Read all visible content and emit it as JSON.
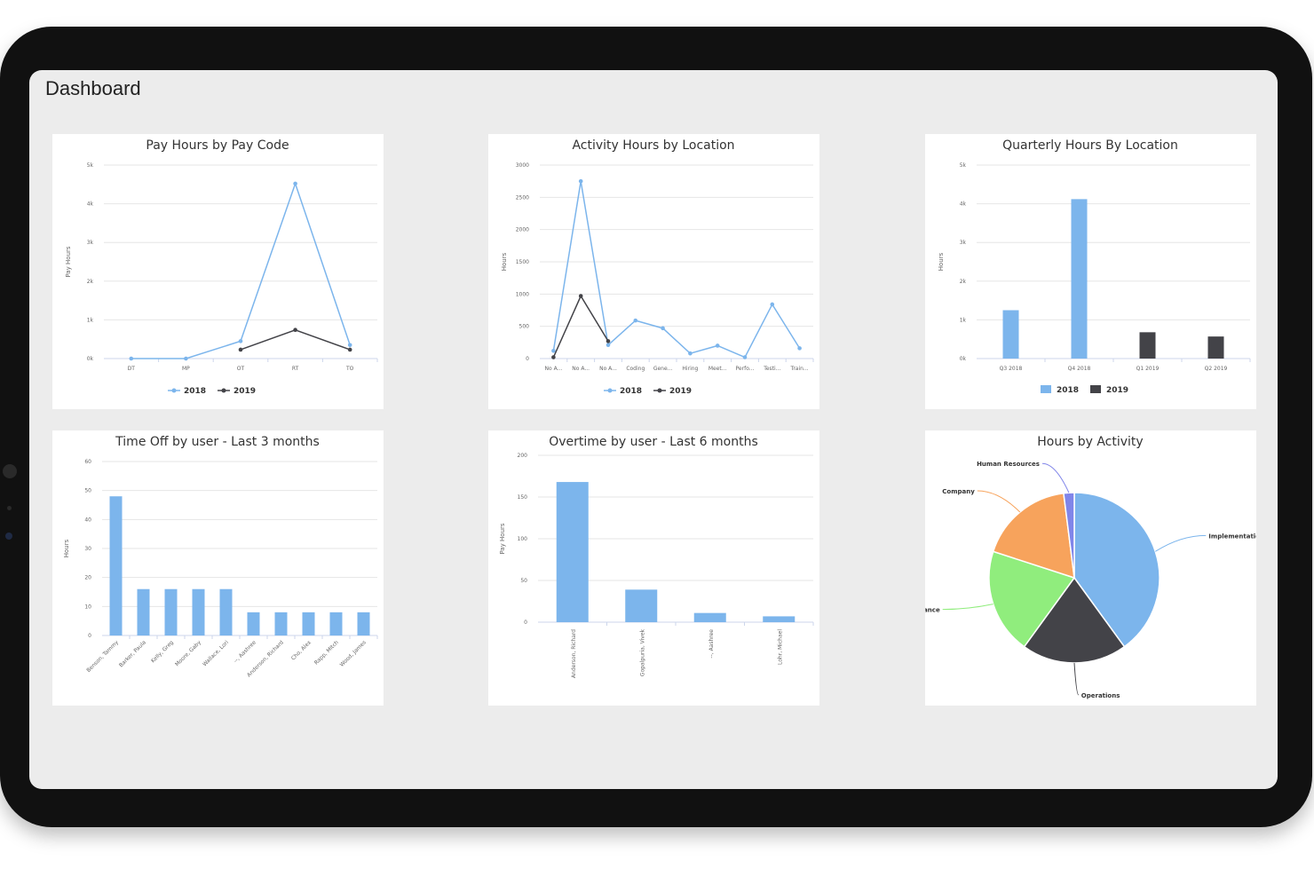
{
  "page": {
    "title": "Dashboard"
  },
  "colors": {
    "s2018": "#7cb5ec",
    "s2019": "#434348",
    "grid": "#e6e6e6"
  },
  "charts": {
    "pay_code": {
      "title": "Pay Hours by Pay Code",
      "chart_data": {
        "type": "line",
        "title": "Pay Hours by Pay Code",
        "ylabel": "Pay Hours",
        "categories": [
          "DT",
          "MP",
          "OT",
          "RT",
          "TO"
        ],
        "yticks": [
          "0k",
          "1k",
          "2k",
          "3k",
          "4k",
          "5k"
        ],
        "ylim": [
          0,
          5000
        ],
        "series": [
          {
            "name": "2018",
            "values": [
              0,
              0,
              450,
              4520,
              350
            ]
          },
          {
            "name": "2019",
            "values": [
              null,
              null,
              230,
              740,
              230
            ]
          }
        ],
        "legend": "bottom"
      }
    },
    "activity": {
      "title": "Activity Hours by Location",
      "chart_data": {
        "type": "line",
        "title": "Activity Hours by Location",
        "ylabel": "Hours",
        "categories": [
          "No A...",
          "No A...",
          "No A...",
          "Coding",
          "Gene...",
          "Hiring",
          "Meet...",
          "Perfo...",
          "Testi...",
          "Train..."
        ],
        "yticks": [
          "0",
          "500",
          "1000",
          "1500",
          "2000",
          "2500",
          "3000"
        ],
        "ylim": [
          0,
          3000
        ],
        "series": [
          {
            "name": "2018",
            "values": [
              120,
              2750,
              210,
              590,
              470,
              80,
              200,
              20,
              840,
              160
            ]
          },
          {
            "name": "2019",
            "values": [
              20,
              970,
              270,
              null,
              null,
              null,
              null,
              null,
              null,
              null
            ]
          }
        ],
        "legend": "bottom"
      }
    },
    "quarterly": {
      "title": "Quarterly Hours By Location",
      "chart_data": {
        "type": "bar",
        "title": "Quarterly Hours By Location",
        "ylabel": "Hours",
        "categories": [
          "Q3 2018",
          "Q4 2018",
          "Q1 2019",
          "Q2 2019"
        ],
        "yticks": [
          "0k",
          "1k",
          "2k",
          "3k",
          "4k",
          "5k"
        ],
        "ylim": [
          0,
          5000
        ],
        "series": [
          {
            "name": "2018",
            "values": [
              1250,
              4120,
              null,
              null
            ]
          },
          {
            "name": "2019",
            "values": [
              null,
              null,
              680,
              570
            ]
          }
        ],
        "legend": "bottom"
      }
    },
    "timeoff": {
      "title": "Time Off by user - Last 3 months",
      "chart_data": {
        "type": "bar",
        "title": "Time Off by user - Last 3 months",
        "ylabel": "Hours",
        "categories": [
          "Benson, Tammy",
          "Barker, Paula",
          "Kelly, Greg",
          "Moore, Gaby",
          "Wallace, Lori",
          "--, Aashree",
          "Anderson, Richard",
          "Cho, Alex",
          "Rapp, Mitch",
          "Wood, James"
        ],
        "yticks": [
          "0",
          "10",
          "20",
          "30",
          "40",
          "50",
          "60"
        ],
        "ylim": [
          0,
          60
        ],
        "values": [
          48,
          16,
          16,
          16,
          16,
          8,
          8,
          8,
          8,
          8
        ]
      }
    },
    "overtime": {
      "title": "Overtime by user - Last 6 months",
      "chart_data": {
        "type": "bar",
        "title": "Overtime by user - Last 6 months",
        "ylabel": "Pay Hours",
        "categories": [
          "Anderson, Richard",
          "Gopalpuria, Vivek",
          "--, Aashree",
          "Lohr, Michael"
        ],
        "yticks": [
          "0",
          "50",
          "100",
          "150",
          "200"
        ],
        "ylim": [
          0,
          200
        ],
        "values": [
          168,
          39,
          11,
          7
        ]
      }
    },
    "activity_pie": {
      "title": "Hours by Activity",
      "chart_data": {
        "type": "pie",
        "title": "Hours by Activity",
        "slices": [
          {
            "label": "Implementation",
            "value": 40,
            "color": "#7cb5ec"
          },
          {
            "label": "Operations",
            "value": 20,
            "color": "#434348"
          },
          {
            "label": "Finance",
            "value": 20,
            "color": "#90ed7d"
          },
          {
            "label": "Company",
            "value": 18,
            "color": "#f7a35c"
          },
          {
            "label": "Human Resources",
            "value": 2,
            "color": "#8085e9"
          }
        ]
      }
    }
  }
}
